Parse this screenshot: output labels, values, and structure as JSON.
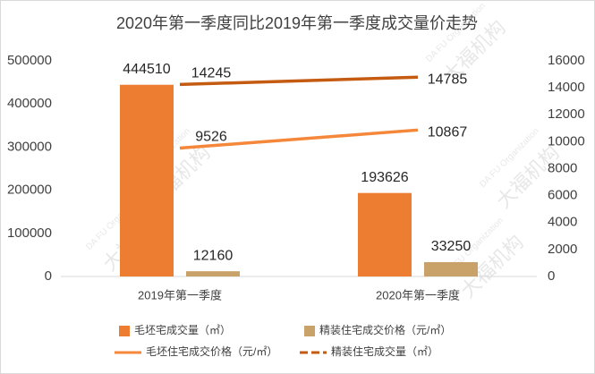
{
  "chart_data": {
    "type": "combo",
    "title": "2020年第一季度同比2019年第一季度成交量价走势",
    "watermark": [
      "大福机构",
      "DA FU Organization"
    ],
    "categories": [
      "2019年第一季度",
      "2020年第一季度"
    ],
    "series": [
      {
        "name": "毛坯宅成交量（㎡）",
        "kind": "bar",
        "color": "#ED7D31",
        "values": [
          444510,
          193626
        ]
      },
      {
        "name": "精装住宅成交价格（元/㎡）",
        "kind": "bar",
        "color": "#C9A26A",
        "values": [
          12160,
          33250
        ]
      },
      {
        "name": "毛坯住宅成交价格（元/㎡）",
        "kind": "line",
        "axis": "y2",
        "color": "#F4873A",
        "values": [
          9526,
          10867
        ]
      },
      {
        "name": "精装住宅成交量（㎡）",
        "kind": "line",
        "axis": "y2",
        "color": "#C55A11",
        "dashed": true,
        "values": [
          14245,
          14785
        ]
      }
    ],
    "ylim": [
      0,
      500000
    ],
    "yticks": [
      0,
      100000,
      200000,
      300000,
      400000,
      500000
    ],
    "y2lim": [
      0,
      16000
    ],
    "y2ticks": [
      0,
      2000,
      4000,
      6000,
      8000,
      10000,
      12000,
      14000,
      16000
    ],
    "grid": false
  }
}
